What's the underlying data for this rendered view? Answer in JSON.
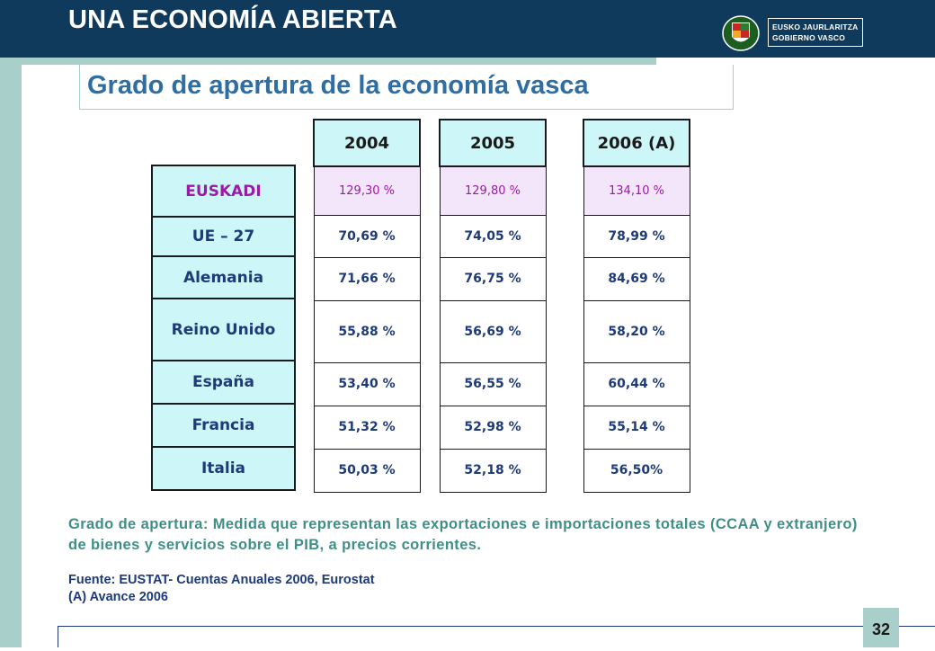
{
  "header": {
    "title": "UNA ECONOMÍA ABIERTA"
  },
  "logo": {
    "line1": "EUSKO JAURLARITZA",
    "line2": "GOBIERNO VASCO"
  },
  "subtitle": "Grado de apertura de la economía vasca",
  "table": {
    "countries": [
      "EUSKADI",
      "UE – 27",
      "Alemania",
      "Reino Unido",
      "España",
      "Francia",
      "Italia"
    ],
    "years": [
      {
        "label": "2004",
        "values": [
          "129,30 %",
          "70,69 %",
          "71,66 %",
          "55,88 %",
          "53,40 %",
          "51,32 %",
          "50,03 %"
        ]
      },
      {
        "label": "2005",
        "values": [
          "129,80 %",
          "74,05 %",
          "76,75 %",
          "56,69 %",
          "56,55 %",
          "52,98 %",
          "52,18 %"
        ]
      },
      {
        "label": "2006 (A)",
        "values": [
          "134,10 %",
          "78,99 %",
          "84,69 %",
          "58,20 %",
          "60,44 %",
          "55,14 %",
          "56,50%"
        ]
      }
    ]
  },
  "note": "Grado de apertura: Medida que representan las exportaciones e importaciones totales (CCAA y extranjero) de bienes y servicios sobre el PIB, a precios  corrientes.",
  "source": {
    "line1": "Fuente: EUSTAT- Cuentas Anuales 2006, Eurostat",
    "line2": "(A) Avance 2006"
  },
  "page_number": "32",
  "colors": {
    "header": "#0f3a5c",
    "accent": "#a8cfca",
    "subtitle": "#2e6ea3",
    "highlight": "#9b1aa8",
    "cell_fill": "#cdf6f8"
  }
}
